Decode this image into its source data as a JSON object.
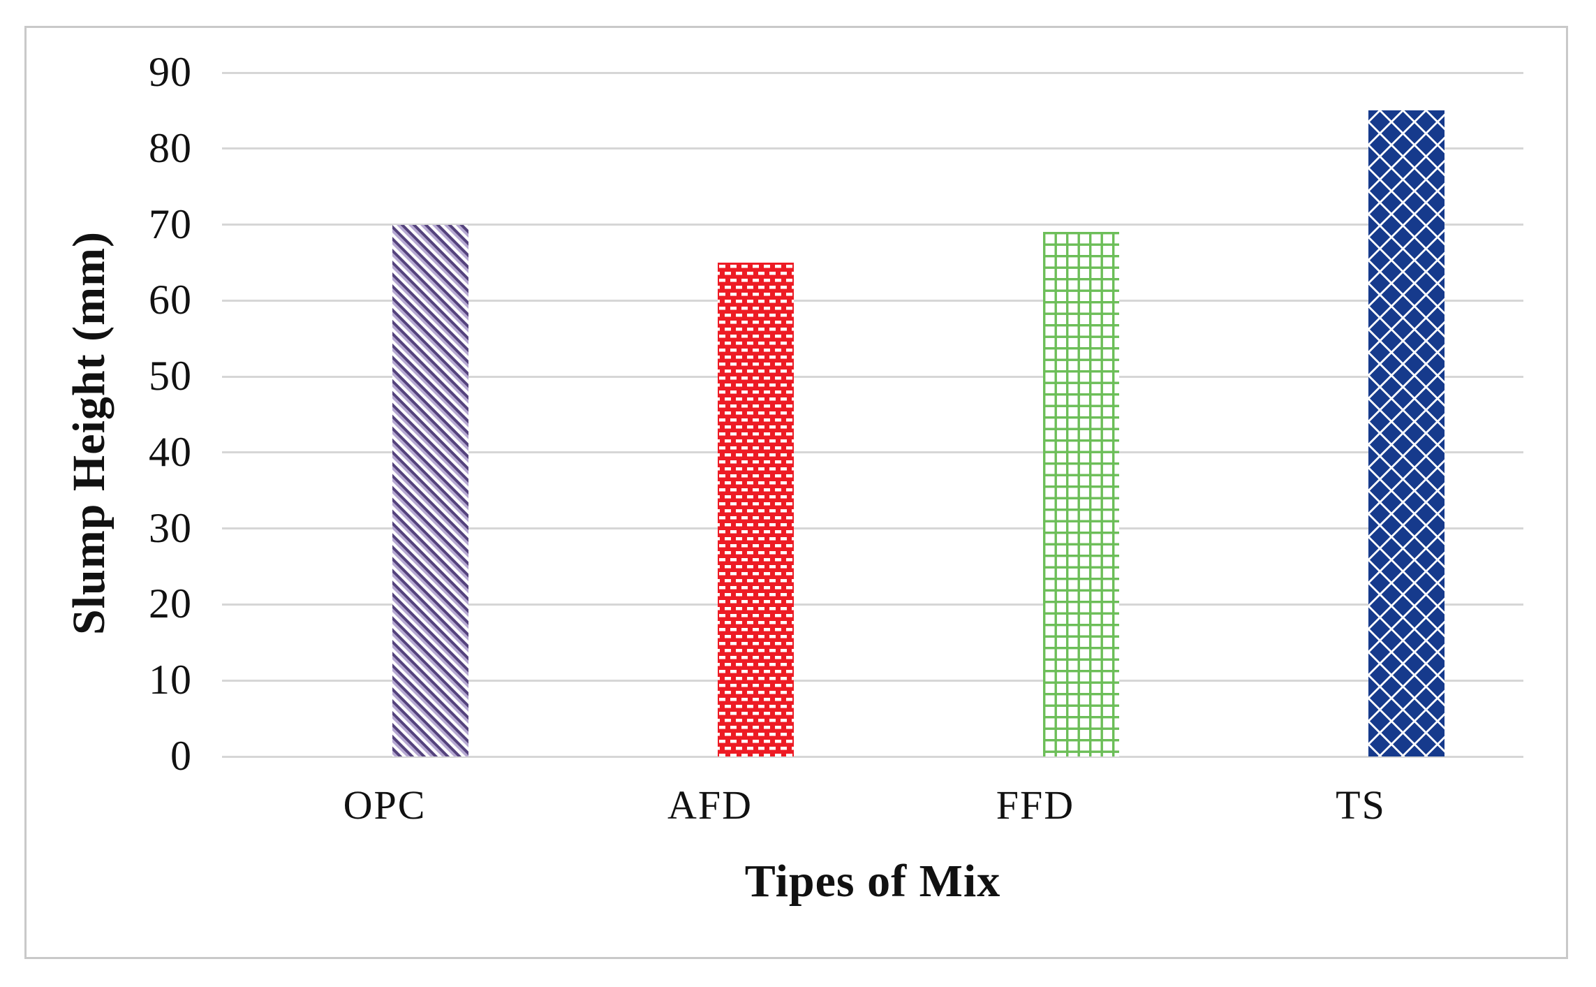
{
  "chart_data": {
    "type": "bar",
    "categories": [
      "OPC",
      "AFD",
      "FFD",
      "TS"
    ],
    "values": [
      70,
      65,
      69,
      85
    ],
    "title": "",
    "xlabel": "Tipes of Mix",
    "ylabel": "Slump Height (mm)",
    "ylim": [
      0,
      90
    ],
    "yticks": [
      0,
      10,
      20,
      30,
      40,
      50,
      60,
      70,
      80,
      90
    ],
    "grid": true,
    "legend_position": "none",
    "series_styles": [
      {
        "name": "OPC",
        "pattern": "diagonal-hatch",
        "color": "#54427c",
        "color2": "#b5a7d2",
        "background": "#ffffff"
      },
      {
        "name": "AFD",
        "pattern": "dashed-brick",
        "color": "#ed1b24",
        "color2": "#ffffff",
        "background": "#ed1b24"
      },
      {
        "name": "FFD",
        "pattern": "square-grid",
        "color": "#6cbe58",
        "color2": "#ffffff",
        "background": "#ffffff"
      },
      {
        "name": "TS",
        "pattern": "solid-diamond",
        "color": "#163a8c",
        "color2": "#ffffff",
        "background": "#ffffff"
      }
    ]
  }
}
